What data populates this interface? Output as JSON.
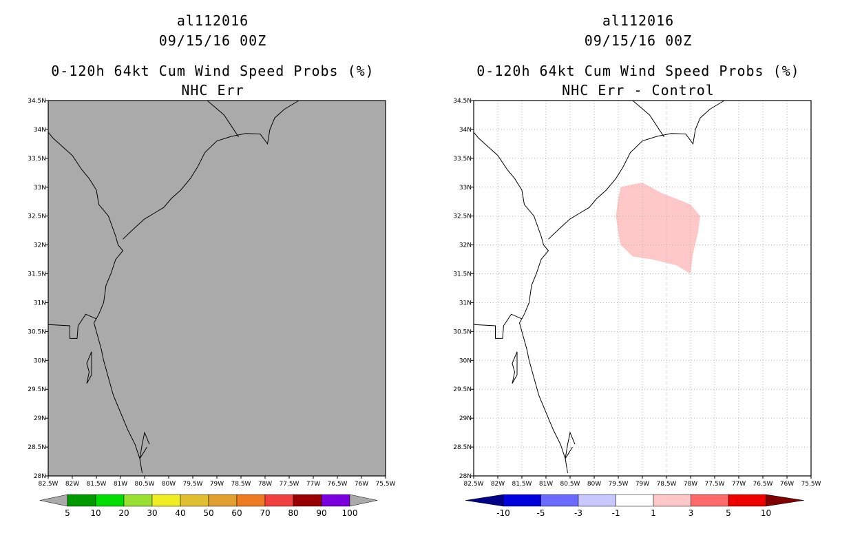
{
  "chart_data": [
    {
      "type": "heatmap",
      "storm_id": "al112016",
      "datetime": "09/15/16 00Z",
      "title": "0-120h 64kt Cum Wind Speed Probs (%)",
      "subtitle": "NHC Err",
      "xlim": [
        -82.5,
        -75.5
      ],
      "ylim": [
        28,
        34.5
      ],
      "x_ticks": [
        "82.5W",
        "82W",
        "81.5W",
        "81W",
        "80.5W",
        "80W",
        "79.5W",
        "79W",
        "78.5W",
        "78W",
        "77.5W",
        "77W",
        "76.5W",
        "76W",
        "75.5W"
      ],
      "y_ticks": [
        "28N",
        "28.5N",
        "29N",
        "29.5N",
        "30N",
        "30.5N",
        "31N",
        "31.5N",
        "32N",
        "32.5N",
        "33N",
        "33.5N",
        "34N",
        "34.5N"
      ],
      "grid": false,
      "field": "all values below 5% (shown as uniform gray)",
      "field_value_label": "below 5",
      "colorbar": {
        "labels": [
          "5",
          "10",
          "20",
          "30",
          "40",
          "50",
          "60",
          "70",
          "80",
          "90",
          "100"
        ],
        "colors": [
          "#009900",
          "#00dd00",
          "#99e033",
          "#eeee22",
          "#e0c030",
          "#e0a030",
          "#ee7a22",
          "#f04040",
          "#990000",
          "#7a00dd"
        ],
        "under_color": "#aaaaaa",
        "over_color": "#aaaaaa"
      }
    },
    {
      "type": "heatmap",
      "storm_id": "al112016",
      "datetime": "09/15/16 00Z",
      "title": "0-120h 64kt Cum Wind Speed Probs (%)",
      "subtitle": "NHC Err - Control",
      "xlim": [
        -82.5,
        -75.5
      ],
      "ylim": [
        28,
        34.5
      ],
      "x_ticks": [
        "82.5W",
        "82W",
        "81.5W",
        "81W",
        "80.5W",
        "80W",
        "79.5W",
        "79W",
        "78.5W",
        "78W",
        "77.5W",
        "77W",
        "76.5W",
        "76W",
        "75.5W"
      ],
      "y_ticks": [
        "28N",
        "28.5N",
        "29N",
        "29.5N",
        "30N",
        "30.5N",
        "31N",
        "31.5N",
        "32N",
        "32.5N",
        "33N",
        "33.5N",
        "34N",
        "34.5N"
      ],
      "grid": true,
      "field_region": {
        "range": "1 to 3",
        "color": "#ffc8c8",
        "polygon_lonlat": [
          [
            -79.45,
            33.0
          ],
          [
            -79.2,
            33.05
          ],
          [
            -79.0,
            33.08
          ],
          [
            -78.6,
            32.9
          ],
          [
            -78.0,
            32.7
          ],
          [
            -77.8,
            32.5
          ],
          [
            -77.85,
            32.2
          ],
          [
            -77.95,
            31.85
          ],
          [
            -78.0,
            31.5
          ],
          [
            -78.3,
            31.65
          ],
          [
            -78.8,
            31.75
          ],
          [
            -79.2,
            31.8
          ],
          [
            -79.45,
            32.0
          ],
          [
            -79.5,
            32.2
          ],
          [
            -79.55,
            32.5
          ],
          [
            -79.5,
            32.8
          ]
        ]
      },
      "colorbar": {
        "labels": [
          "-10",
          "-5",
          "-3",
          "-1",
          "1",
          "3",
          "5",
          "10"
        ],
        "colors": [
          "#0000dd",
          "#6a6aff",
          "#c8c8ff",
          "#ffffff",
          "#ffc8c8",
          "#ff6a6a",
          "#ee0000"
        ],
        "under_color": "#000088",
        "over_color": "#800000"
      }
    }
  ]
}
